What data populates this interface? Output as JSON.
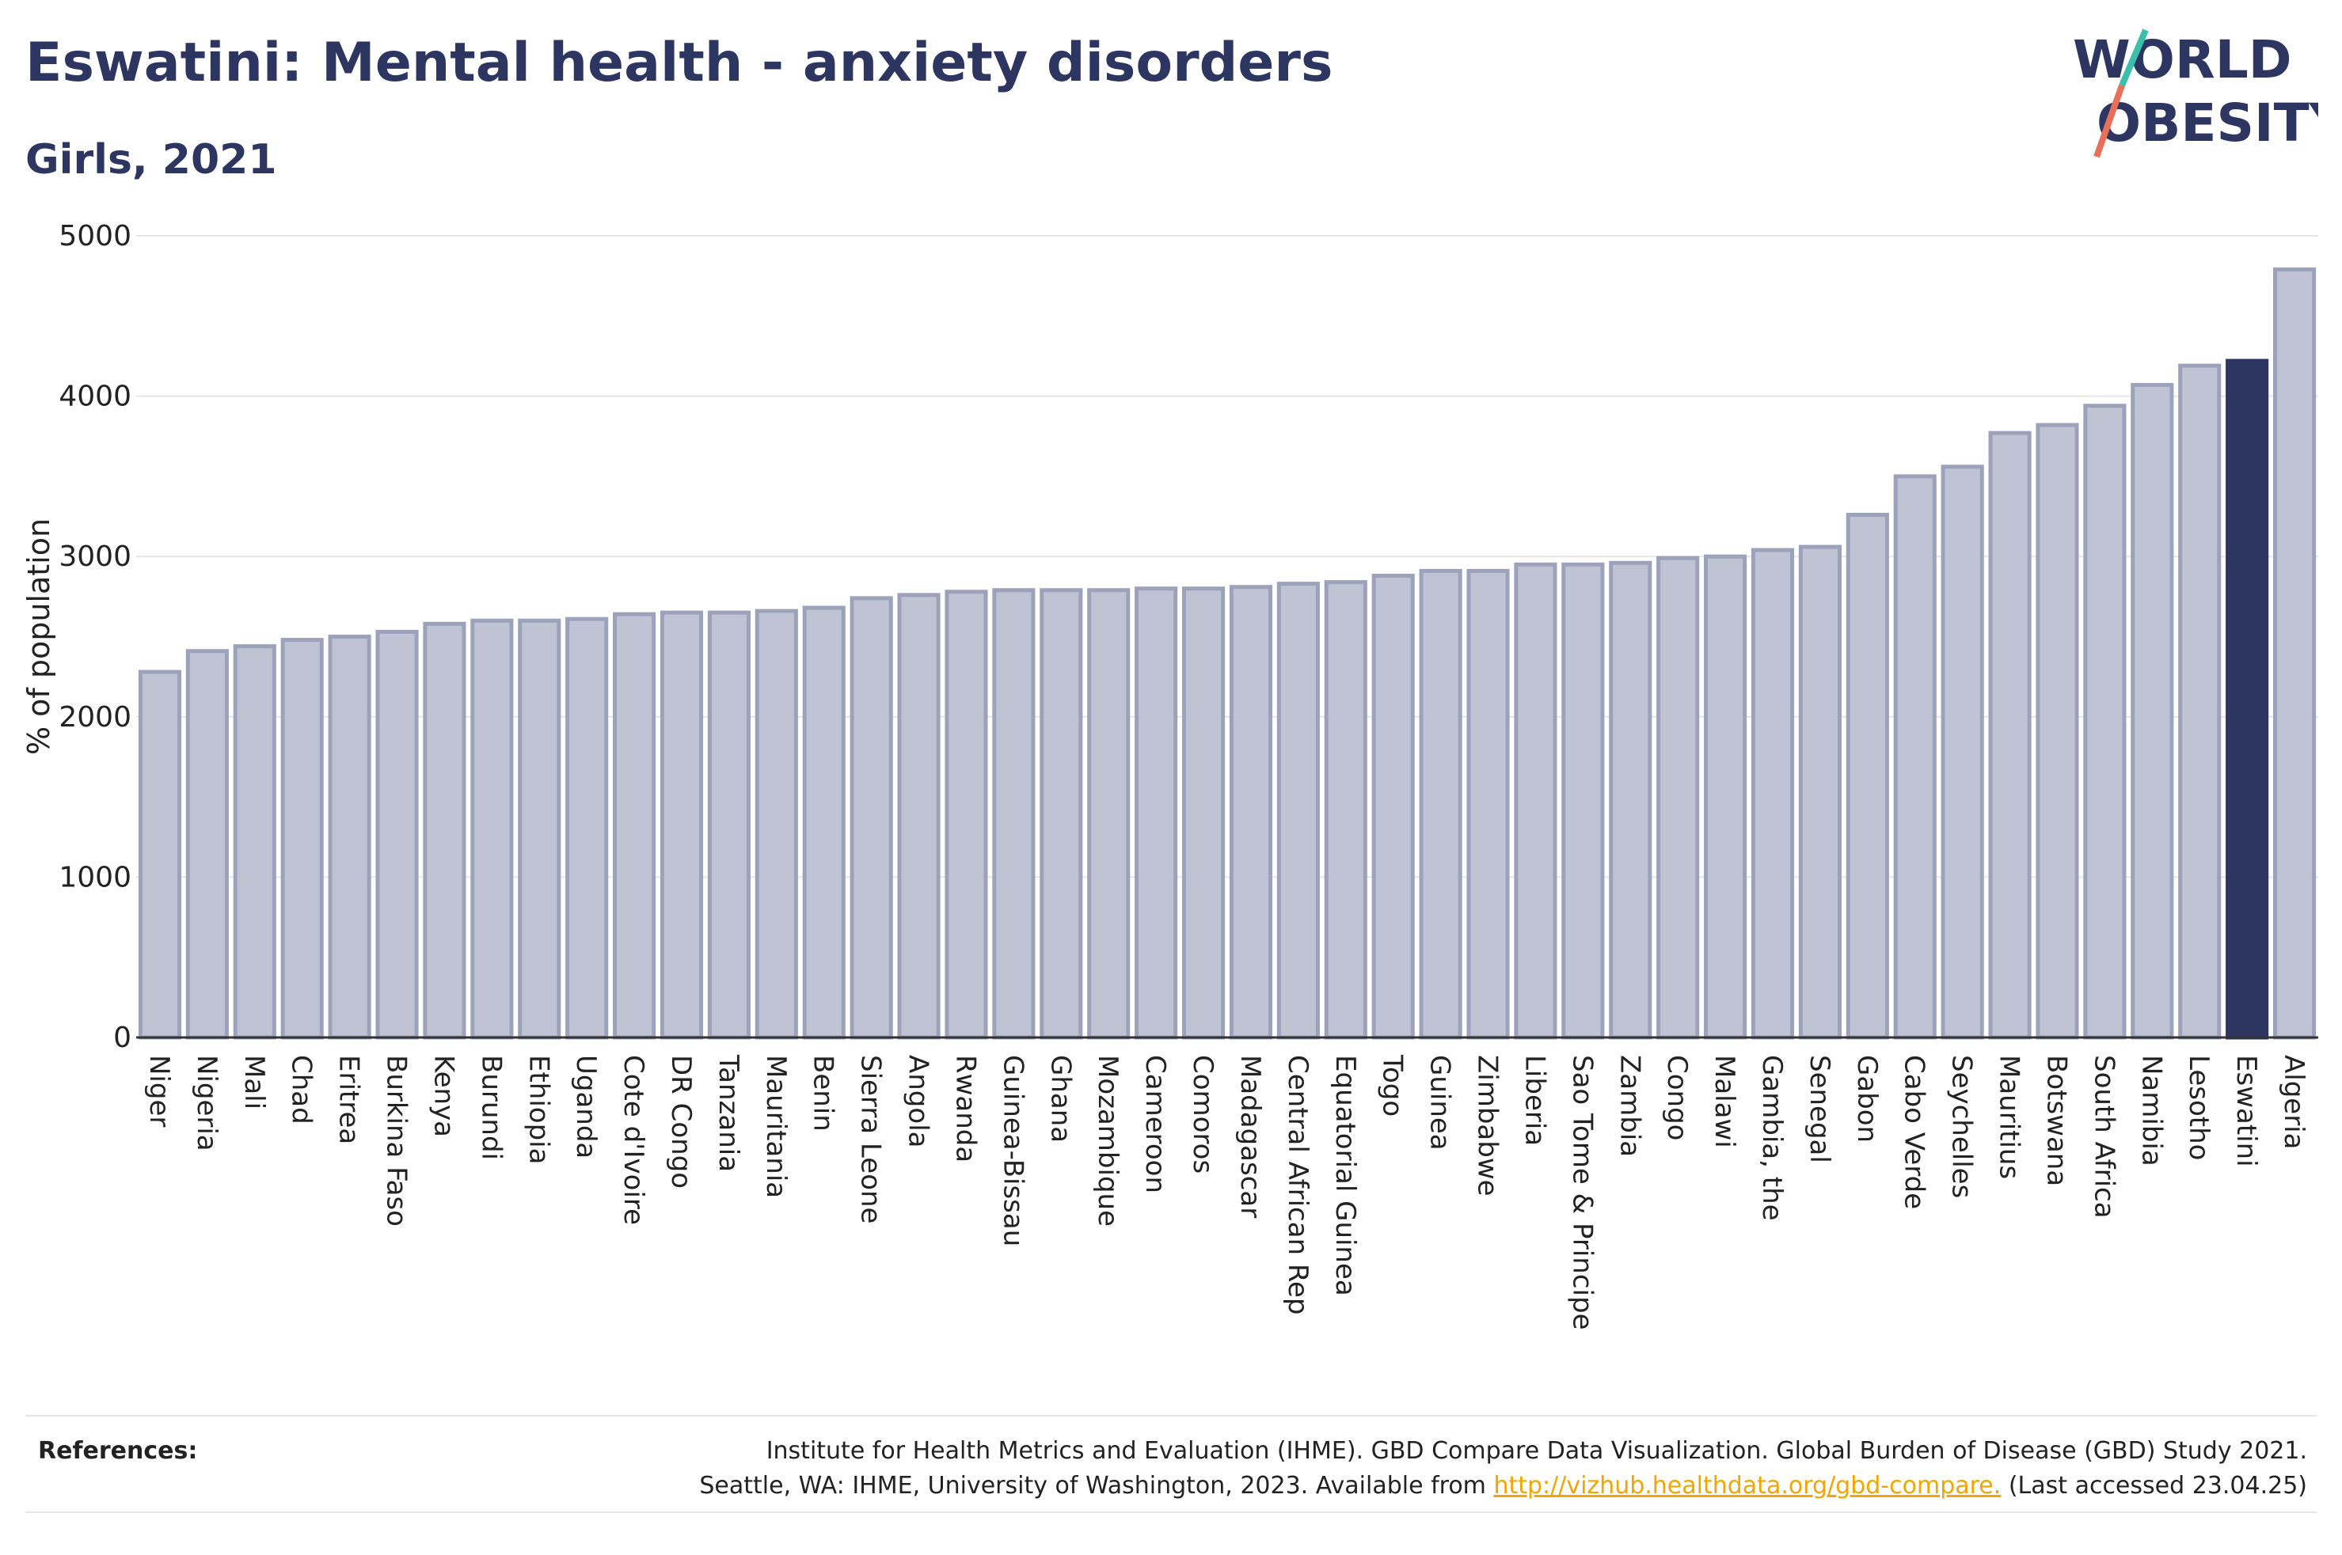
{
  "header": {
    "title": "Eswatini: Mental health - anxiety disorders",
    "subtitle": "Girls, 2021"
  },
  "logo": {
    "line1": "WORLD",
    "line2": "OBESITY",
    "colors": {
      "text": "#2d3561",
      "slash_teal": "#3bbfad",
      "slash_coral": "#e8705a"
    }
  },
  "chart_data": {
    "type": "bar",
    "title": "Eswatini: Mental health - anxiety disorders",
    "subtitle": "Girls, 2021",
    "xlabel": "",
    "ylabel": "% of population",
    "ylim": [
      0,
      5000
    ],
    "yticks": [
      0,
      1000,
      2000,
      3000,
      4000,
      5000
    ],
    "grid": true,
    "highlight": "Eswatini",
    "colors": {
      "bar": "#bfc3d3",
      "bar_edge": "#9da2bb",
      "highlight": "#2d3561",
      "grid": "#e6e6e6"
    },
    "categories": [
      "Niger",
      "Nigeria",
      "Mali",
      "Chad",
      "Eritrea",
      "Burkina Faso",
      "Kenya",
      "Burundi",
      "Ethiopia",
      "Uganda",
      "Cote d'Ivoire",
      "DR Congo",
      "Tanzania",
      "Mauritania",
      "Benin",
      "Sierra Leone",
      "Angola",
      "Rwanda",
      "Guinea-Bissau",
      "Ghana",
      "Mozambique",
      "Cameroon",
      "Comoros",
      "Madagascar",
      "Central African Rep",
      "Equatorial Guinea",
      "Togo",
      "Guinea",
      "Zimbabwe",
      "Liberia",
      "Sao Tome & Principe",
      "Zambia",
      "Congo",
      "Malawi",
      "Gambia, the",
      "Senegal",
      "Gabon",
      "Cabo Verde",
      "Seychelles",
      "Mauritius",
      "Botswana",
      "South Africa",
      "Namibia",
      "Lesotho",
      "Eswatini",
      "Algeria"
    ],
    "values": [
      2280,
      2410,
      2440,
      2480,
      2500,
      2530,
      2580,
      2600,
      2600,
      2610,
      2640,
      2650,
      2650,
      2660,
      2680,
      2740,
      2760,
      2780,
      2790,
      2790,
      2790,
      2800,
      2800,
      2810,
      2830,
      2840,
      2880,
      2910,
      2910,
      2950,
      2950,
      2960,
      2990,
      3000,
      3040,
      3060,
      3260,
      3500,
      3560,
      3770,
      3820,
      3940,
      4070,
      4190,
      4220,
      4790
    ]
  },
  "references": {
    "label": "References:",
    "line1": "Institute for Health Metrics and Evaluation (IHME). GBD Compare Data Visualization. Global Burden of Disease (GBD) Study 2021.",
    "line2_prefix": "Seattle, WA: IHME, University of Washington, 2023. Available from ",
    "link": "http://vizhub.healthdata.org/gbd-compare.",
    "line2_suffix": " (Last accessed 23.04.25)"
  }
}
